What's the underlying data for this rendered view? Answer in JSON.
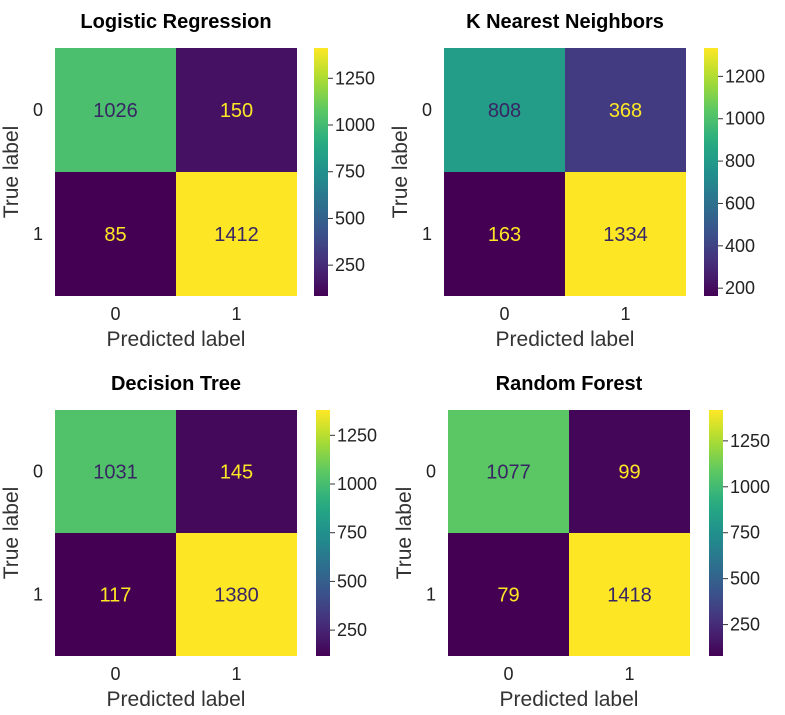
{
  "chart_data": [
    {
      "type": "heatmap",
      "title": "Logistic Regression",
      "xlabel": "Predicted label",
      "ylabel": "True label",
      "x_categories": [
        "0",
        "1"
      ],
      "y_categories": [
        "0",
        "1"
      ],
      "matrix": [
        [
          1026,
          150
        ],
        [
          85,
          1412
        ]
      ],
      "colormap": "viridis",
      "colorbar_ticks": [
        250,
        500,
        750,
        1000,
        1250
      ]
    },
    {
      "type": "heatmap",
      "title": "K Nearest Neighbors",
      "xlabel": "Predicted label",
      "ylabel": "True label",
      "x_categories": [
        "0",
        "1"
      ],
      "y_categories": [
        "0",
        "1"
      ],
      "matrix": [
        [
          808,
          368
        ],
        [
          163,
          1334
        ]
      ],
      "colormap": "viridis",
      "colorbar_ticks": [
        200,
        400,
        600,
        800,
        1000,
        1200
      ]
    },
    {
      "type": "heatmap",
      "title": "Decision Tree",
      "xlabel": "Predicted label",
      "ylabel": "True label",
      "x_categories": [
        "0",
        "1"
      ],
      "y_categories": [
        "0",
        "1"
      ],
      "matrix": [
        [
          1031,
          145
        ],
        [
          117,
          1380
        ]
      ],
      "colormap": "viridis",
      "colorbar_ticks": [
        250,
        500,
        750,
        1000,
        1250
      ]
    },
    {
      "type": "heatmap",
      "title": "Random Forest",
      "xlabel": "Predicted label",
      "ylabel": "True label",
      "x_categories": [
        "0",
        "1"
      ],
      "y_categories": [
        "0",
        "1"
      ],
      "matrix": [
        [
          1077,
          99
        ],
        [
          79,
          1418
        ]
      ],
      "colormap": "viridis",
      "colorbar_ticks": [
        250,
        500,
        750,
        1000,
        1250
      ]
    }
  ]
}
